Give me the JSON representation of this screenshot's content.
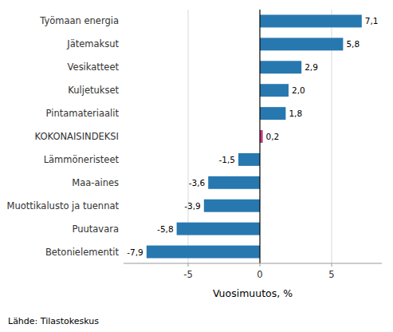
{
  "chart_data": {
    "type": "bar",
    "orientation": "horizontal",
    "categories": [
      "Betonielementit",
      "Puutavara",
      "Muottikalusto ja tuennat",
      "Maa-aines",
      "Lämmöneristeet",
      "KOKONAISINDEKSI",
      "Pintamateriaalit",
      "Kuljetukset",
      "Vesikatteet",
      "Jätemaksut",
      "Työmaan energia"
    ],
    "values": [
      -7.9,
      -5.8,
      -3.9,
      -3.6,
      -1.5,
      0.2,
      1.8,
      2.0,
      2.9,
      5.8,
      7.1
    ],
    "value_labels": [
      "-7,9",
      "-5,8",
      "-3,9",
      "-3,6",
      "-1,5",
      "0,2",
      "1,8",
      "2,0",
      "2,9",
      "5,8",
      "7,1"
    ],
    "colors": [
      "#2878B0",
      "#2878B0",
      "#2878B0",
      "#2878B0",
      "#2878B0",
      "#C0387A",
      "#2878B0",
      "#2878B0",
      "#2878B0",
      "#2878B0",
      "#2878B0"
    ],
    "data_labels": true,
    "xlabel": "Vuosimuutos, %",
    "xlim": [
      -9.5,
      8.5
    ],
    "xticks": [
      -5,
      0,
      5
    ],
    "grid": true,
    "annotation": "Lähde: Tilastokeskus"
  }
}
